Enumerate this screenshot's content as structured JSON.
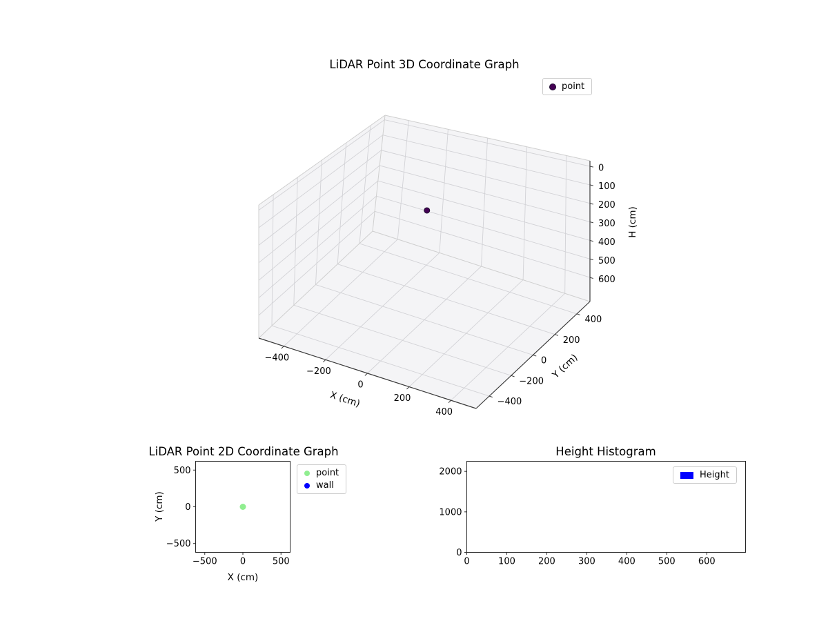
{
  "chart_data": [
    {
      "id": "lidar3d",
      "type": "scatter3d",
      "title": "LiDAR Point 3D Coordinate Graph",
      "xlabel": "X (cm)",
      "ylabel": "Y (cm)",
      "zlabel": "H (cm)",
      "xlim": [
        -520,
        520
      ],
      "ylim": [
        -520,
        520
      ],
      "hlim": [
        -30,
        730
      ],
      "h_axis_inverted": true,
      "grid": true,
      "xticks": [
        -400,
        -200,
        0,
        200,
        400
      ],
      "yticks": [
        -400,
        -200,
        0,
        200,
        400
      ],
      "hticks": [
        0,
        100,
        200,
        300,
        400,
        500,
        600
      ],
      "series": [
        {
          "name": "point",
          "color": "#440154",
          "marker": "circle",
          "points": [
            {
              "x": 0,
              "y": 0,
              "h": 100
            }
          ]
        }
      ],
      "legend": {
        "position": "upper-right",
        "entries": [
          {
            "label": "point",
            "color": "#440154",
            "marker": "circle"
          }
        ]
      }
    },
    {
      "id": "lidar2d",
      "type": "scatter",
      "title": "LiDAR Point 2D Coordinate Graph",
      "xlabel": "X (cm)",
      "ylabel": "Y (cm)",
      "xlim": [
        -620,
        620
      ],
      "ylim": [
        -620,
        620
      ],
      "grid": false,
      "xticks": [
        -500,
        0,
        500
      ],
      "yticks": [
        -500,
        0,
        500
      ],
      "series": [
        {
          "name": "point",
          "color": "#90ee90",
          "marker": "circle",
          "points": [
            [
              0,
              0
            ]
          ]
        },
        {
          "name": "wall",
          "color": "#0000ff",
          "marker": "circle",
          "points": []
        }
      ],
      "legend": {
        "position": "outside-right",
        "entries": [
          {
            "label": "point",
            "color": "#90ee90",
            "marker": "circle"
          },
          {
            "label": "wall",
            "color": "#0000ff",
            "marker": "circle"
          }
        ]
      }
    },
    {
      "id": "height_histogram",
      "type": "bar",
      "title": "Height Histogram",
      "xlabel": "",
      "ylabel": "",
      "xlim": [
        0,
        697
      ],
      "ylim": [
        0,
        2250
      ],
      "grid": false,
      "xticks": [
        0,
        100,
        200,
        300,
        400,
        500,
        600
      ],
      "yticks": [
        0,
        1000,
        2000
      ],
      "series": [
        {
          "name": "Height",
          "color": "#0000ff",
          "values": []
        }
      ],
      "legend": {
        "position": "inside-upper-right",
        "entries": [
          {
            "label": "Height",
            "color": "#0000ff",
            "marker": "rect"
          }
        ]
      }
    }
  ]
}
